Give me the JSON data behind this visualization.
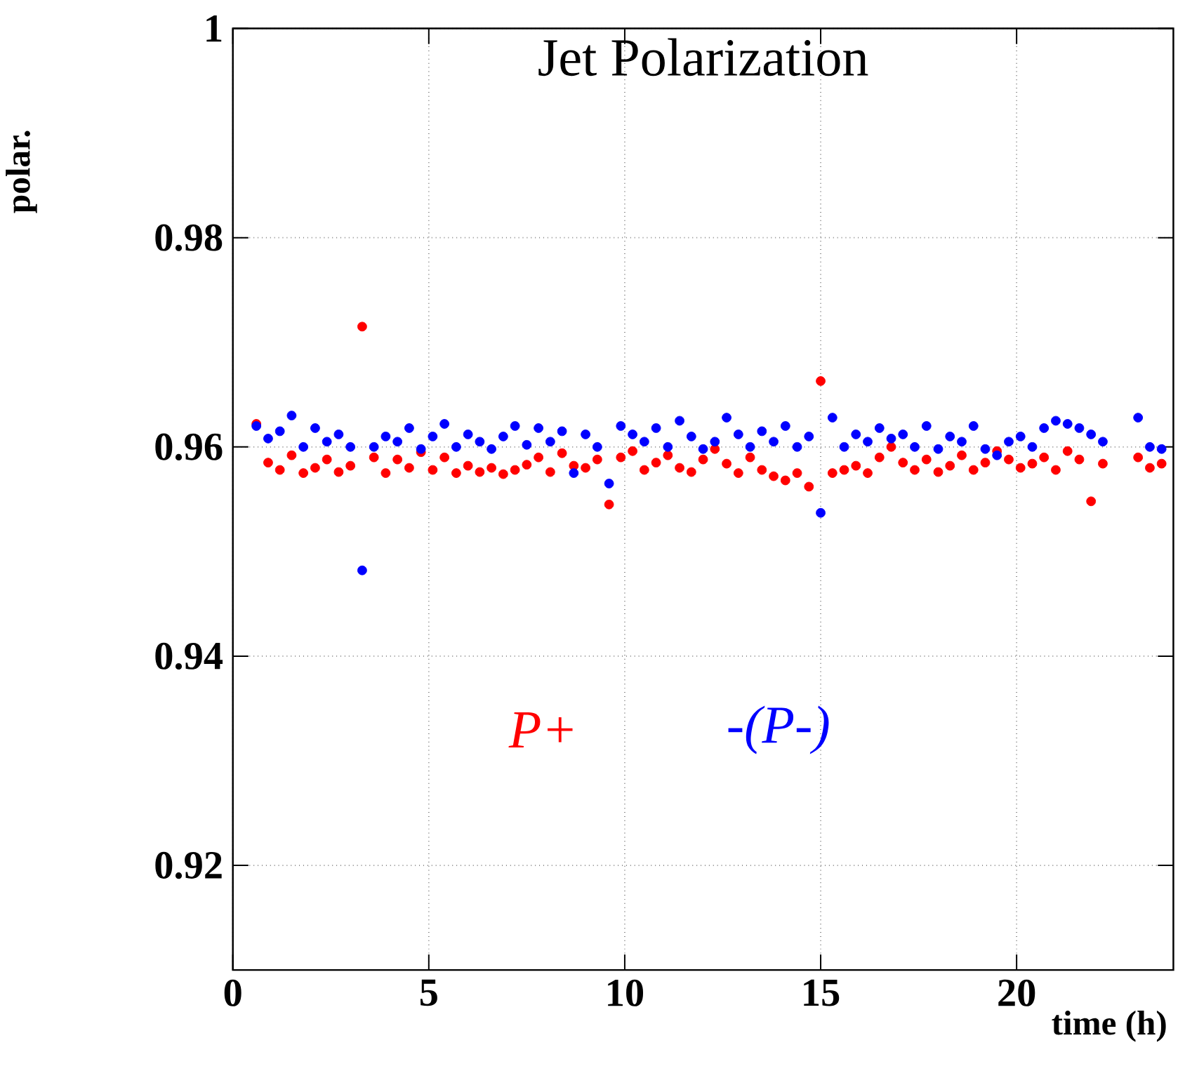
{
  "chart_data": {
    "type": "scatter",
    "title": "Jet Polarization",
    "xlabel": "time (h)",
    "ylabel": "polar.",
    "xlim": [
      0,
      24
    ],
    "xticks": [
      0,
      5,
      10,
      15,
      20
    ],
    "ylim": [
      0.91,
      1
    ],
    "yticks": [
      0.92,
      0.94,
      0.96,
      0.98,
      1
    ],
    "grid": true,
    "marker": "circle",
    "x": [
      0.6,
      0.9,
      1.2,
      1.5,
      1.8,
      2.1,
      2.4,
      2.7,
      3.0,
      3.3,
      3.6,
      3.9,
      4.2,
      4.5,
      4.8,
      5.1,
      5.4,
      5.7,
      6.0,
      6.3,
      6.6,
      6.9,
      7.2,
      7.5,
      7.8,
      8.1,
      8.4,
      8.7,
      9.0,
      9.3,
      9.6,
      9.9,
      10.2,
      10.5,
      10.8,
      11.1,
      11.4,
      11.7,
      12.0,
      12.3,
      12.6,
      12.9,
      13.2,
      13.5,
      13.8,
      14.1,
      14.4,
      14.7,
      15.0,
      15.3,
      15.6,
      15.9,
      16.2,
      16.5,
      16.8,
      17.1,
      17.4,
      17.7,
      18.0,
      18.3,
      18.6,
      18.9,
      19.2,
      19.5,
      19.8,
      20.1,
      20.4,
      20.7,
      21.0,
      21.3,
      21.6,
      21.9,
      22.2,
      23.1,
      23.4,
      23.7
    ],
    "series": [
      {
        "name": "P+",
        "color": "#ff0000",
        "values": [
          0.9622,
          0.9585,
          0.9578,
          0.9592,
          0.9575,
          0.958,
          0.9588,
          0.9576,
          0.9582,
          0.9715,
          0.959,
          0.9575,
          0.9588,
          0.958,
          0.9595,
          0.9578,
          0.959,
          0.9575,
          0.9582,
          0.9576,
          0.958,
          0.9574,
          0.9578,
          0.9583,
          0.959,
          0.9576,
          0.9594,
          0.9582,
          0.958,
          0.9588,
          0.9545,
          0.959,
          0.9596,
          0.9578,
          0.9585,
          0.9592,
          0.958,
          0.9576,
          0.9588,
          0.9598,
          0.9584,
          0.9575,
          0.959,
          0.9578,
          0.9572,
          0.9568,
          0.9575,
          0.9562,
          0.9663,
          0.9575,
          0.9578,
          0.9582,
          0.9575,
          0.959,
          0.96,
          0.9585,
          0.9578,
          0.9588,
          0.9576,
          0.9582,
          0.9592,
          0.9578,
          0.9585,
          0.9596,
          0.9588,
          0.958,
          0.9584,
          0.959,
          0.9578,
          0.9596,
          0.9588,
          0.9548,
          0.9584,
          0.959,
          0.958,
          0.9584
        ]
      },
      {
        "name": "-(P-)",
        "color": "#0000ff",
        "values": [
          0.962,
          0.9608,
          0.9615,
          0.963,
          0.96,
          0.9618,
          0.9605,
          0.9612,
          0.96,
          0.9482,
          0.96,
          0.961,
          0.9605,
          0.9618,
          0.9598,
          0.961,
          0.9622,
          0.96,
          0.9612,
          0.9605,
          0.9598,
          0.961,
          0.962,
          0.9602,
          0.9618,
          0.9605,
          0.9615,
          0.9575,
          0.9612,
          0.96,
          0.9565,
          0.962,
          0.9612,
          0.9605,
          0.9618,
          0.96,
          0.9625,
          0.961,
          0.9598,
          0.9605,
          0.9628,
          0.9612,
          0.96,
          0.9615,
          0.9605,
          0.962,
          0.96,
          0.961,
          0.9537,
          0.9628,
          0.96,
          0.9612,
          0.9605,
          0.9618,
          0.9608,
          0.9612,
          0.96,
          0.962,
          0.9598,
          0.961,
          0.9605,
          0.962,
          0.9598,
          0.9592,
          0.9605,
          0.961,
          0.96,
          0.9618,
          0.9625,
          0.9622,
          0.9618,
          0.9612,
          0.9605,
          0.9628,
          0.96,
          0.9598
        ]
      }
    ]
  }
}
